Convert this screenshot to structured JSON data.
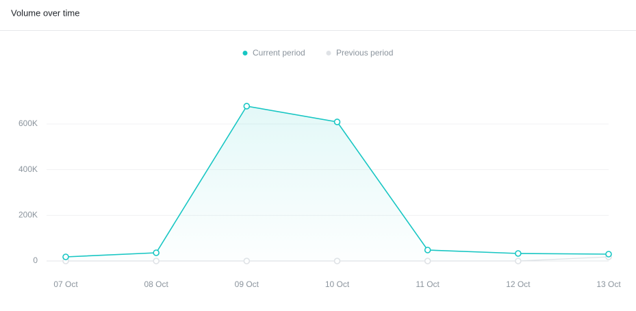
{
  "chart_data": {
    "type": "line",
    "title": "Volume over time",
    "categories": [
      "07 Oct",
      "08 Oct",
      "09 Oct",
      "10 Oct",
      "11 Oct",
      "12 Oct",
      "13 Oct"
    ],
    "series": [
      {
        "name": "Current period",
        "color": "#17c6c3",
        "values": [
          18000,
          36000,
          678000,
          609000,
          48000,
          33000,
          30000
        ]
      },
      {
        "name": "Previous period",
        "color": "#dfe2e6",
        "values": [
          0,
          0,
          0,
          0,
          0,
          0,
          18000
        ]
      }
    ],
    "ylim": [
      0,
      800000
    ],
    "yticks": [
      0,
      {
        "value": 200000,
        "label": "200K"
      },
      {
        "value": 400000,
        "label": "400K"
      },
      {
        "value": 600000,
        "label": "600K"
      }
    ],
    "grid": true,
    "legend": "top"
  }
}
